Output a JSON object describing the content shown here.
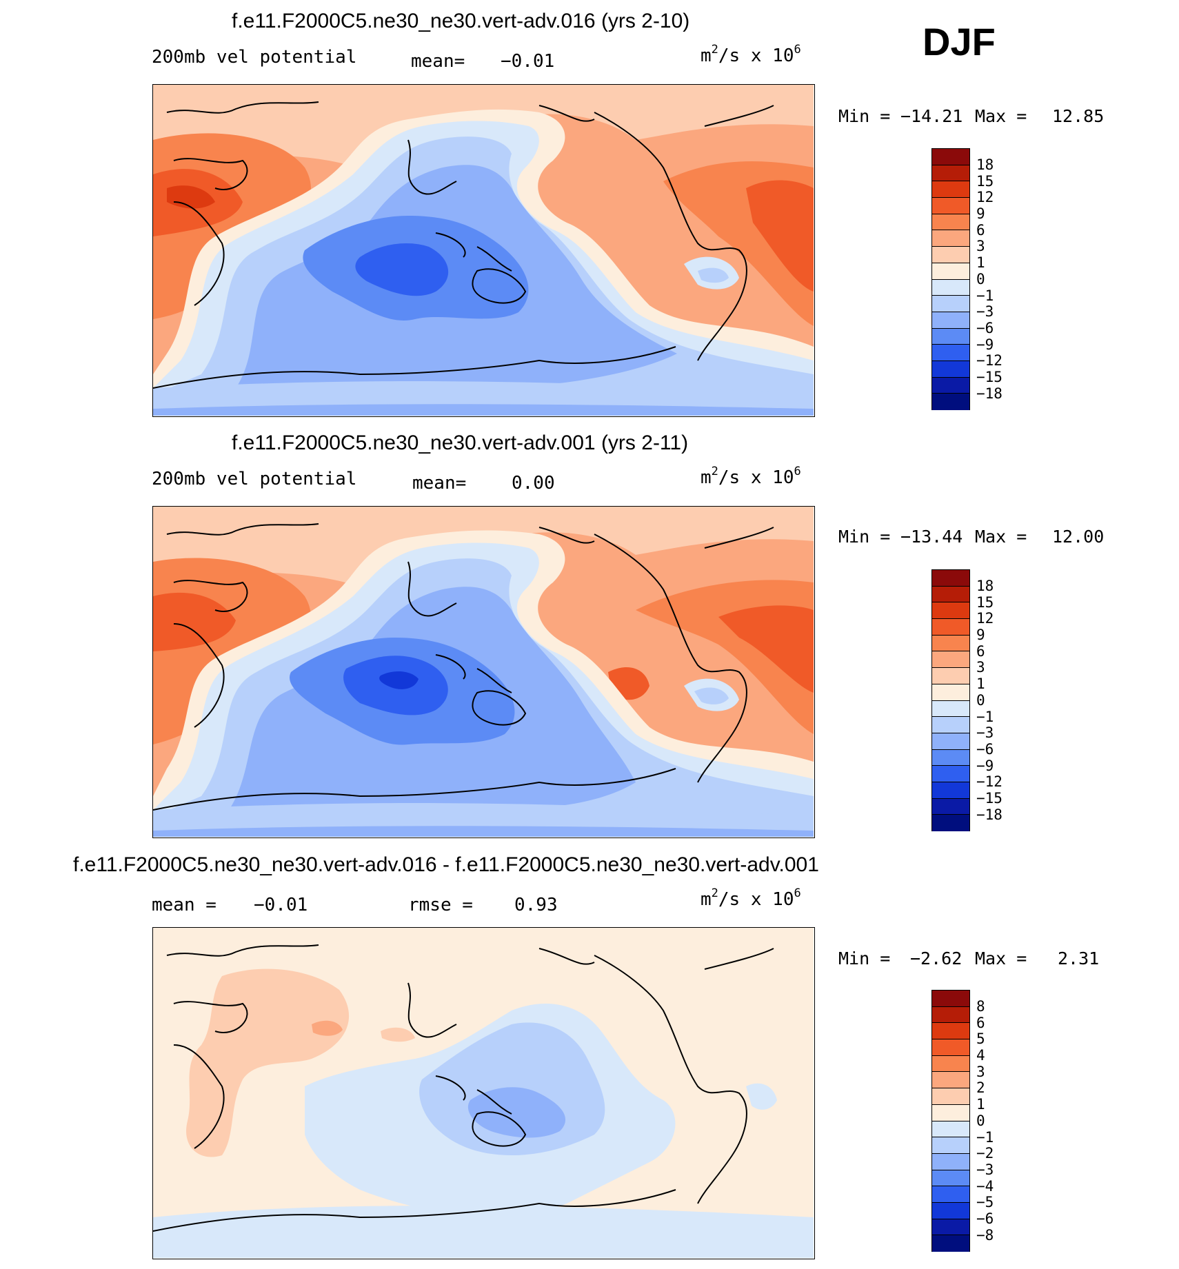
{
  "season": "DJF",
  "panels": [
    {
      "title": "f.e11.F2000C5.ne30_ne30.vert-adv.016 (yrs 2-10)",
      "left_label": "200mb vel potential",
      "stat_label": "mean=",
      "stat_value": "−0.01",
      "unit": "m²/s x 10⁶",
      "unit_base": "m",
      "unit_exp": "2",
      "unit_mid": "/s x 10",
      "unit_pow": "6",
      "min_label": "Min =",
      "min_value": "−14.21",
      "max_label": "Max =",
      "max_value": "12.85",
      "colorbar_labels": [
        "18",
        "15",
        "12",
        "9",
        "6",
        "3",
        "1",
        "0",
        "−1",
        "−3",
        "−6",
        "−9",
        "−12",
        "−15",
        "−18"
      ]
    },
    {
      "title": "f.e11.F2000C5.ne30_ne30.vert-adv.001 (yrs 2-11)",
      "left_label": "200mb vel potential",
      "stat_label": "mean=",
      "stat_value": "0.00",
      "unit": "m²/s x 10⁶",
      "unit_base": "m",
      "unit_exp": "2",
      "unit_mid": "/s x 10",
      "unit_pow": "6",
      "min_label": "Min =",
      "min_value": "−13.44",
      "max_label": "Max =",
      "max_value": "12.00",
      "colorbar_labels": [
        "18",
        "15",
        "12",
        "9",
        "6",
        "3",
        "1",
        "0",
        "−1",
        "−3",
        "−6",
        "−9",
        "−12",
        "−15",
        "−18"
      ]
    },
    {
      "title": "f.e11.F2000C5.ne30_ne30.vert-adv.016 - f.e11.F2000C5.ne30_ne30.vert-adv.001",
      "left_label": "mean =",
      "left_value": "−0.01",
      "stat_label": "rmse =",
      "stat_value": "0.93",
      "unit": "m²/s x 10⁶",
      "unit_base": "m",
      "unit_exp": "2",
      "unit_mid": "/s x 10",
      "unit_pow": "6",
      "min_label": "Min =",
      "min_value": "−2.62",
      "max_label": "Max =",
      "max_value": "2.31",
      "colorbar_labels": [
        "8",
        "6",
        "5",
        "4",
        "3",
        "2",
        "1",
        "0",
        "−1",
        "−2",
        "−3",
        "−4",
        "−5",
        "−6",
        "−8"
      ]
    }
  ],
  "palette": [
    "#8b0a0a",
    "#b51d07",
    "#dd3a10",
    "#f05a28",
    "#f8844e",
    "#fba77e",
    "#fdcdb0",
    "#fdeedd",
    "#d8e8fa",
    "#b7d0fb",
    "#8fb1fa",
    "#5c8bf5",
    "#2f5ff0",
    "#1238d8",
    "#0a1aa6",
    "#000e7e"
  ],
  "difference_palette": [
    "#8b0a0a",
    "#b51d07",
    "#dd3a10",
    "#f05a28",
    "#f8844e",
    "#fba77e",
    "#fdcdb0",
    "#fdeedd",
    "#d8e8fa",
    "#b7d0fb",
    "#8fb1fa",
    "#5c8bf5",
    "#2f5ff0",
    "#1238d8",
    "#0a1aa6",
    "#000e7e"
  ]
}
